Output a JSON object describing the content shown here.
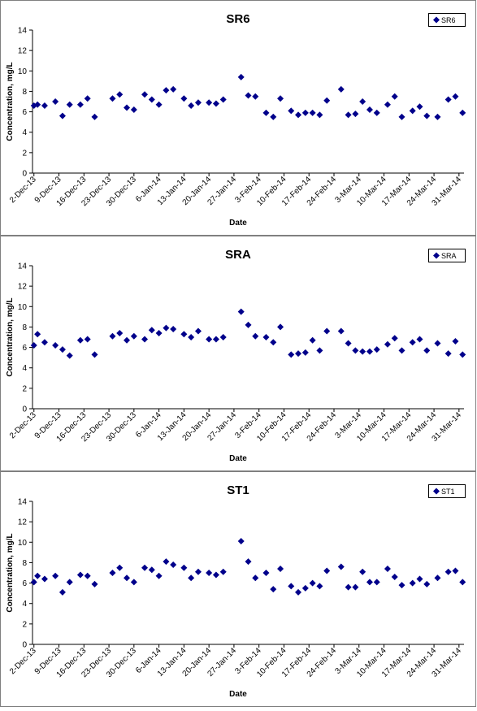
{
  "chart_data": [
    {
      "type": "scatter",
      "title": "SR6",
      "xlabel": "Date",
      "ylabel": "Concentration, mg/L",
      "ylim": [
        0,
        14
      ],
      "yticks": [
        0,
        2,
        4,
        6,
        8,
        10,
        12,
        14
      ],
      "xticks": [
        "2-Dec-13",
        "9-Dec-13",
        "16-Dec-13",
        "23-Dec-13",
        "30-Dec-13",
        "6-Jan-14",
        "13-Jan-14",
        "20-Jan-14",
        "27-Jan-14",
        "3-Feb-14",
        "10-Feb-14",
        "17-Feb-14",
        "24-Feb-14",
        "3-Mar-14",
        "10-Mar-14",
        "17-Mar-14",
        "24-Mar-14",
        "31-Mar-14"
      ],
      "legend": {
        "placement": "top-right"
      },
      "grid": false,
      "color": "#00008b",
      "series": [
        {
          "name": "SR6",
          "points": [
            {
              "x": "2-Dec-13",
              "y": 6.6
            },
            {
              "x": "3-Dec-13",
              "y": 6.7
            },
            {
              "x": "5-Dec-13",
              "y": 6.6
            },
            {
              "x": "8-Dec-13",
              "y": 7.0
            },
            {
              "x": "10-Dec-13",
              "y": 5.6
            },
            {
              "x": "12-Dec-13",
              "y": 6.7
            },
            {
              "x": "15-Dec-13",
              "y": 6.7
            },
            {
              "x": "17-Dec-13",
              "y": 7.3
            },
            {
              "x": "19-Dec-13",
              "y": 5.5
            },
            {
              "x": "24-Dec-13",
              "y": 7.3
            },
            {
              "x": "26-Dec-13",
              "y": 7.7
            },
            {
              "x": "28-Dec-13",
              "y": 6.4
            },
            {
              "x": "30-Dec-13",
              "y": 6.2
            },
            {
              "x": "2-Jan-14",
              "y": 7.7
            },
            {
              "x": "4-Jan-14",
              "y": 7.2
            },
            {
              "x": "6-Jan-14",
              "y": 6.7
            },
            {
              "x": "8-Jan-14",
              "y": 8.1
            },
            {
              "x": "10-Jan-14",
              "y": 8.2
            },
            {
              "x": "13-Jan-14",
              "y": 7.3
            },
            {
              "x": "15-Jan-14",
              "y": 6.6
            },
            {
              "x": "17-Jan-14",
              "y": 6.9
            },
            {
              "x": "20-Jan-14",
              "y": 6.9
            },
            {
              "x": "22-Jan-14",
              "y": 6.8
            },
            {
              "x": "24-Jan-14",
              "y": 7.2
            },
            {
              "x": "29-Jan-14",
              "y": 9.4
            },
            {
              "x": "31-Jan-14",
              "y": 7.6
            },
            {
              "x": "2-Feb-14",
              "y": 7.5
            },
            {
              "x": "5-Feb-14",
              "y": 5.9
            },
            {
              "x": "7-Feb-14",
              "y": 5.5
            },
            {
              "x": "9-Feb-14",
              "y": 7.3
            },
            {
              "x": "12-Feb-14",
              "y": 6.1
            },
            {
              "x": "14-Feb-14",
              "y": 5.7
            },
            {
              "x": "16-Feb-14",
              "y": 5.9
            },
            {
              "x": "18-Feb-14",
              "y": 5.9
            },
            {
              "x": "20-Feb-14",
              "y": 5.7
            },
            {
              "x": "22-Feb-14",
              "y": 7.1
            },
            {
              "x": "26-Feb-14",
              "y": 8.2
            },
            {
              "x": "28-Feb-14",
              "y": 5.7
            },
            {
              "x": "2-Mar-14",
              "y": 5.8
            },
            {
              "x": "4-Mar-14",
              "y": 7.0
            },
            {
              "x": "6-Mar-14",
              "y": 6.2
            },
            {
              "x": "8-Mar-14",
              "y": 5.9
            },
            {
              "x": "11-Mar-14",
              "y": 6.7
            },
            {
              "x": "13-Mar-14",
              "y": 7.5
            },
            {
              "x": "15-Mar-14",
              "y": 5.5
            },
            {
              "x": "18-Mar-14",
              "y": 6.1
            },
            {
              "x": "20-Mar-14",
              "y": 6.5
            },
            {
              "x": "22-Mar-14",
              "y": 5.6
            },
            {
              "x": "25-Mar-14",
              "y": 5.5
            },
            {
              "x": "28-Mar-14",
              "y": 7.2
            },
            {
              "x": "30-Mar-14",
              "y": 7.5
            },
            {
              "x": "1-Apr-14",
              "y": 5.9
            }
          ]
        }
      ]
    },
    {
      "type": "scatter",
      "title": "SRA",
      "xlabel": "Date",
      "ylabel": "Concentration, mg/L",
      "ylim": [
        0,
        14
      ],
      "yticks": [
        0,
        2,
        4,
        6,
        8,
        10,
        12,
        14
      ],
      "xticks": [
        "2-Dec-13",
        "9-Dec-13",
        "16-Dec-13",
        "23-Dec-13",
        "30-Dec-13",
        "6-Jan-14",
        "13-Jan-14",
        "20-Jan-14",
        "27-Jan-14",
        "3-Feb-14",
        "10-Feb-14",
        "17-Feb-14",
        "24-Feb-14",
        "3-Mar-14",
        "10-Mar-14",
        "17-Mar-14",
        "24-Mar-14",
        "31-Mar-14"
      ],
      "legend": {
        "placement": "top-right"
      },
      "grid": false,
      "color": "#00008b",
      "series": [
        {
          "name": "SRA",
          "points": [
            {
              "x": "2-Dec-13",
              "y": 6.2
            },
            {
              "x": "3-Dec-13",
              "y": 7.3
            },
            {
              "x": "5-Dec-13",
              "y": 6.5
            },
            {
              "x": "8-Dec-13",
              "y": 6.2
            },
            {
              "x": "10-Dec-13",
              "y": 5.8
            },
            {
              "x": "12-Dec-13",
              "y": 5.2
            },
            {
              "x": "15-Dec-13",
              "y": 6.7
            },
            {
              "x": "17-Dec-13",
              "y": 6.8
            },
            {
              "x": "19-Dec-13",
              "y": 5.3
            },
            {
              "x": "24-Dec-13",
              "y": 7.1
            },
            {
              "x": "26-Dec-13",
              "y": 7.4
            },
            {
              "x": "28-Dec-13",
              "y": 6.7
            },
            {
              "x": "30-Dec-13",
              "y": 7.1
            },
            {
              "x": "2-Jan-14",
              "y": 6.8
            },
            {
              "x": "4-Jan-14",
              "y": 7.7
            },
            {
              "x": "6-Jan-14",
              "y": 7.4
            },
            {
              "x": "8-Jan-14",
              "y": 7.9
            },
            {
              "x": "10-Jan-14",
              "y": 7.8
            },
            {
              "x": "13-Jan-14",
              "y": 7.3
            },
            {
              "x": "15-Jan-14",
              "y": 7.0
            },
            {
              "x": "17-Jan-14",
              "y": 7.6
            },
            {
              "x": "20-Jan-14",
              "y": 6.8
            },
            {
              "x": "22-Jan-14",
              "y": 6.8
            },
            {
              "x": "24-Jan-14",
              "y": 7.0
            },
            {
              "x": "29-Jan-14",
              "y": 9.5
            },
            {
              "x": "31-Jan-14",
              "y": 8.2
            },
            {
              "x": "2-Feb-14",
              "y": 7.1
            },
            {
              "x": "5-Feb-14",
              "y": 7.0
            },
            {
              "x": "7-Feb-14",
              "y": 6.5
            },
            {
              "x": "9-Feb-14",
              "y": 8.0
            },
            {
              "x": "12-Feb-14",
              "y": 5.3
            },
            {
              "x": "14-Feb-14",
              "y": 5.4
            },
            {
              "x": "16-Feb-14",
              "y": 5.5
            },
            {
              "x": "18-Feb-14",
              "y": 6.7
            },
            {
              "x": "20-Feb-14",
              "y": 5.7
            },
            {
              "x": "22-Feb-14",
              "y": 7.6
            },
            {
              "x": "26-Feb-14",
              "y": 7.6
            },
            {
              "x": "28-Feb-14",
              "y": 6.4
            },
            {
              "x": "2-Mar-14",
              "y": 5.7
            },
            {
              "x": "4-Mar-14",
              "y": 5.6
            },
            {
              "x": "6-Mar-14",
              "y": 5.6
            },
            {
              "x": "8-Mar-14",
              "y": 5.8
            },
            {
              "x": "11-Mar-14",
              "y": 6.3
            },
            {
              "x": "13-Mar-14",
              "y": 6.9
            },
            {
              "x": "15-Mar-14",
              "y": 5.7
            },
            {
              "x": "18-Mar-14",
              "y": 6.5
            },
            {
              "x": "20-Mar-14",
              "y": 6.8
            },
            {
              "x": "22-Mar-14",
              "y": 5.7
            },
            {
              "x": "25-Mar-14",
              "y": 6.4
            },
            {
              "x": "28-Mar-14",
              "y": 5.4
            },
            {
              "x": "30-Mar-14",
              "y": 6.6
            },
            {
              "x": "1-Apr-14",
              "y": 5.3
            }
          ]
        }
      ]
    },
    {
      "type": "scatter",
      "title": "ST1",
      "xlabel": "Date",
      "ylabel": "Concentration, mg/L",
      "ylim": [
        0,
        14
      ],
      "yticks": [
        0,
        2,
        4,
        6,
        8,
        10,
        12,
        14
      ],
      "xticks": [
        "2-Dec-13",
        "9-Dec-13",
        "16-Dec-13",
        "23-Dec-13",
        "30-Dec-13",
        "6-Jan-14",
        "13-Jan-14",
        "20-Jan-14",
        "27-Jan-14",
        "3-Feb-14",
        "10-Feb-14",
        "17-Feb-14",
        "24-Feb-14",
        "3-Mar-14",
        "10-Mar-14",
        "17-Mar-14",
        "24-Mar-14",
        "31-Mar-14"
      ],
      "legend": {
        "placement": "top-right"
      },
      "grid": false,
      "color": "#00008b",
      "series": [
        {
          "name": "ST1",
          "points": [
            {
              "x": "2-Dec-13",
              "y": 6.1
            },
            {
              "x": "3-Dec-13",
              "y": 6.7
            },
            {
              "x": "5-Dec-13",
              "y": 6.4
            },
            {
              "x": "8-Dec-13",
              "y": 6.7
            },
            {
              "x": "10-Dec-13",
              "y": 5.1
            },
            {
              "x": "12-Dec-13",
              "y": 6.1
            },
            {
              "x": "15-Dec-13",
              "y": 6.8
            },
            {
              "x": "17-Dec-13",
              "y": 6.7
            },
            {
              "x": "19-Dec-13",
              "y": 5.9
            },
            {
              "x": "24-Dec-13",
              "y": 7.0
            },
            {
              "x": "26-Dec-13",
              "y": 7.5
            },
            {
              "x": "28-Dec-13",
              "y": 6.5
            },
            {
              "x": "30-Dec-13",
              "y": 6.1
            },
            {
              "x": "2-Jan-14",
              "y": 7.5
            },
            {
              "x": "4-Jan-14",
              "y": 7.3
            },
            {
              "x": "6-Jan-14",
              "y": 6.7
            },
            {
              "x": "8-Jan-14",
              "y": 8.1
            },
            {
              "x": "10-Jan-14",
              "y": 7.8
            },
            {
              "x": "13-Jan-14",
              "y": 7.5
            },
            {
              "x": "15-Jan-14",
              "y": 6.5
            },
            {
              "x": "17-Jan-14",
              "y": 7.1
            },
            {
              "x": "20-Jan-14",
              "y": 7.0
            },
            {
              "x": "22-Jan-14",
              "y": 6.8
            },
            {
              "x": "24-Jan-14",
              "y": 7.1
            },
            {
              "x": "29-Jan-14",
              "y": 10.1
            },
            {
              "x": "31-Jan-14",
              "y": 8.1
            },
            {
              "x": "2-Feb-14",
              "y": 6.5
            },
            {
              "x": "5-Feb-14",
              "y": 7.0
            },
            {
              "x": "7-Feb-14",
              "y": 5.4
            },
            {
              "x": "9-Feb-14",
              "y": 7.4
            },
            {
              "x": "12-Feb-14",
              "y": 5.7
            },
            {
              "x": "14-Feb-14",
              "y": 5.1
            },
            {
              "x": "16-Feb-14",
              "y": 5.5
            },
            {
              "x": "18-Feb-14",
              "y": 6.0
            },
            {
              "x": "20-Feb-14",
              "y": 5.7
            },
            {
              "x": "22-Feb-14",
              "y": 7.2
            },
            {
              "x": "26-Feb-14",
              "y": 7.6
            },
            {
              "x": "28-Feb-14",
              "y": 5.6
            },
            {
              "x": "2-Mar-14",
              "y": 5.6
            },
            {
              "x": "4-Mar-14",
              "y": 7.1
            },
            {
              "x": "6-Mar-14",
              "y": 6.1
            },
            {
              "x": "8-Mar-14",
              "y": 6.1
            },
            {
              "x": "11-Mar-14",
              "y": 7.4
            },
            {
              "x": "13-Mar-14",
              "y": 6.6
            },
            {
              "x": "15-Mar-14",
              "y": 5.8
            },
            {
              "x": "18-Mar-14",
              "y": 6.0
            },
            {
              "x": "20-Mar-14",
              "y": 6.4
            },
            {
              "x": "22-Mar-14",
              "y": 5.9
            },
            {
              "x": "25-Mar-14",
              "y": 6.5
            },
            {
              "x": "28-Mar-14",
              "y": 7.1
            },
            {
              "x": "30-Mar-14",
              "y": 7.2
            },
            {
              "x": "1-Apr-14",
              "y": 6.1
            }
          ]
        }
      ]
    }
  ]
}
